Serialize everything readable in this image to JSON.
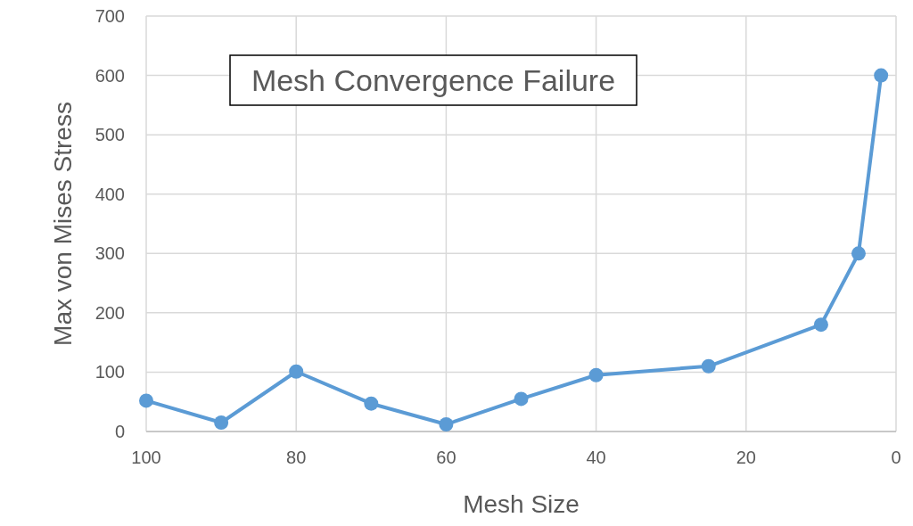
{
  "chart_data": {
    "type": "line",
    "title": "Mesh Convergence Failure",
    "xlabel": "Mesh Size",
    "ylabel": "Max von Mises Stress",
    "x": [
      100,
      90,
      80,
      70,
      60,
      50,
      40,
      25,
      10,
      5,
      2
    ],
    "series": [
      {
        "color": "#5b9bd5",
        "values": [
          52,
          15,
          101,
          47,
          12,
          55,
          95,
          110,
          180,
          300,
          600
        ]
      }
    ],
    "xlim": [
      100,
      0
    ],
    "xticks": [
      100,
      80,
      60,
      40,
      20,
      0
    ],
    "ylim": [
      0,
      700
    ],
    "yticks": [
      0,
      100,
      200,
      300,
      400,
      500,
      600,
      700
    ],
    "grid": true,
    "marker": "circle",
    "line_style": "solid"
  }
}
